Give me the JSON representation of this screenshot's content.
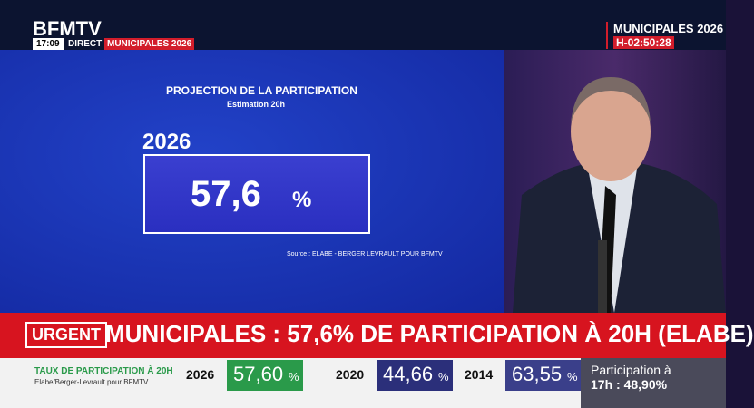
{
  "header": {
    "logo": "BFMTV",
    "time": "17:09",
    "live": "DIRECT",
    "tag": "MUNICIPALES 2026"
  },
  "corner": {
    "title": "MUNICIPALES 2026",
    "countdown": "H-02:50:28"
  },
  "panel": {
    "title": "PROJECTION DE LA PARTICIPATION",
    "subtitle": "Estimation 20h",
    "year": "2026",
    "value": "57,6",
    "unit": "%",
    "source": "Source :  ELABE - BERGER LEVRAULT POUR BFMTV"
  },
  "banner": {
    "tag": "URGENT",
    "headline": "MUNICIPALES : 57,6% DE PARTICIPATION À 20H (ELABE)"
  },
  "ticker": {
    "title": "TAUX DE PARTICIPATION À 20H",
    "subtitle": "Elabe/Berger-Levrault pour BFMTV",
    "items": [
      {
        "year": "2026",
        "value": "57,60",
        "unit": "%"
      },
      {
        "year": "2020",
        "value": "44,66",
        "unit": "%"
      },
      {
        "year": "2014",
        "value": "63,55",
        "unit": "%"
      }
    ],
    "side": {
      "line1": "Participation à",
      "line2": "17h : 48,90%"
    }
  }
}
